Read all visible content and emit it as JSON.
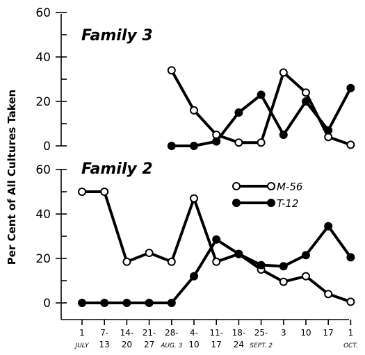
{
  "chart_data": {
    "type": "line",
    "ylabel": "Per Cent of All Cultures Taken",
    "ylim": [
      0,
      60
    ],
    "y_ticks": [
      "0",
      "20",
      "40",
      "60"
    ],
    "x_labels": [
      {
        "top": "1",
        "bottom": "JULY"
      },
      {
        "top": "7-",
        "bottom": "13"
      },
      {
        "top": "14-",
        "bottom": "20"
      },
      {
        "top": "21-",
        "bottom": "27"
      },
      {
        "top": "28-",
        "bottom": "AUG. 3"
      },
      {
        "top": "4-",
        "bottom": "10"
      },
      {
        "top": "11-",
        "bottom": "17"
      },
      {
        "top": "18-",
        "bottom": "24"
      },
      {
        "top": "25-",
        "bottom": "SEPT. 2"
      },
      {
        "top": "3",
        "bottom": ""
      },
      {
        "top": "10",
        "bottom": ""
      },
      {
        "top": "17",
        "bottom": ""
      },
      {
        "top": "1",
        "bottom": "OCT."
      }
    ],
    "legend": [
      {
        "label": "M-56",
        "marker": "open"
      },
      {
        "label": "T-12",
        "marker": "filled"
      }
    ],
    "panels": [
      {
        "title": "Family 3",
        "series": [
          {
            "name": "M-56",
            "values": [
              null,
              null,
              null,
              null,
              34,
              16,
              5,
              1.5,
              1.5,
              33,
              24,
              4,
              0.5
            ]
          },
          {
            "name": "T-12",
            "values": [
              null,
              null,
              null,
              null,
              0,
              0,
              2,
              15,
              23,
              5,
              20,
              7,
              26
            ]
          }
        ]
      },
      {
        "title": "Family 2",
        "series": [
          {
            "name": "M-56",
            "values": [
              50,
              50,
              18.5,
              22.5,
              18.5,
              47,
              18.5,
              22,
              15,
              9.5,
              12,
              4,
              0.5
            ]
          },
          {
            "name": "T-12",
            "values": [
              0,
              0,
              0,
              0,
              0,
              12,
              28.5,
              22,
              17,
              16.5,
              21.5,
              34.5,
              20.5
            ]
          }
        ]
      }
    ]
  }
}
